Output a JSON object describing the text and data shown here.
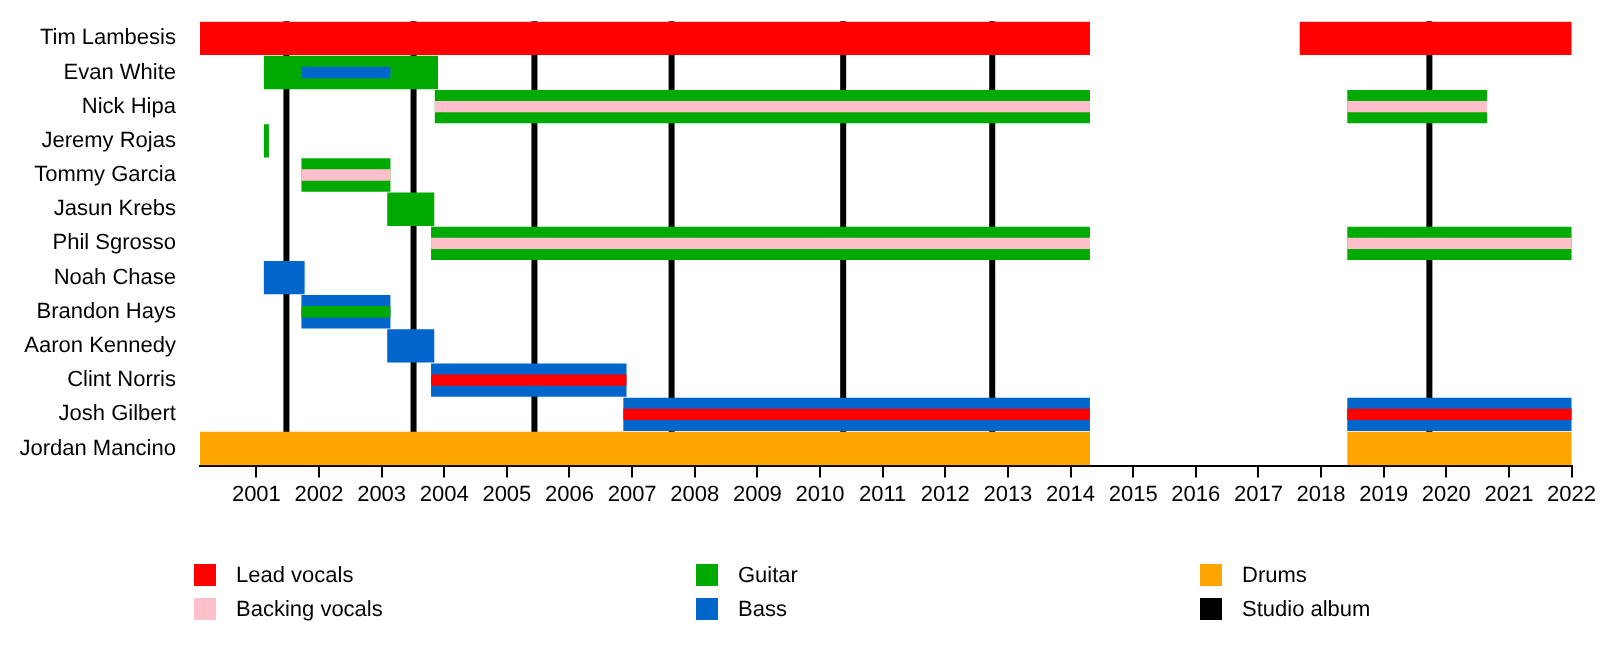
{
  "chart_data": {
    "type": "bar",
    "orientation": "horizontal",
    "legend": "bottom",
    "grid": false,
    "categories": [
      "Tim Lambesis",
      "Evan White",
      "Nick Hipa",
      "Jeremy Rojas",
      "Tommy Garcia",
      "Jasun Krebs",
      "Phil Sgrosso",
      "Noah Chase",
      "Brandon Hays",
      "Aaron Kennedy",
      "Clint Norris",
      "Josh Gilbert",
      "Jordan Mancino"
    ],
    "xlim": [
      2000.1,
      2022
    ],
    "xticks": [
      2001,
      2002,
      2003,
      2004,
      2005,
      2006,
      2007,
      2008,
      2009,
      2010,
      2011,
      2012,
      2013,
      2014,
      2015,
      2016,
      2017,
      2018,
      2019,
      2020,
      2021,
      2022
    ],
    "series": [
      {
        "name": "Lead vocals",
        "color": "#ff0000",
        "base": [
          2000.1,
          null,
          null,
          null,
          null,
          null,
          null,
          null,
          null,
          null,
          2003.8,
          2006.87,
          null
        ],
        "values": [
          14.2,
          null,
          null,
          null,
          null,
          null,
          null,
          null,
          null,
          null,
          3.1,
          7.43,
          null
        ]
      },
      {
        "name": "Backing vocals",
        "color": "#ffc0cb",
        "base": [
          null,
          null,
          2003.86,
          null,
          2001.73,
          null,
          2003.8,
          null,
          null,
          null,
          null,
          null,
          null
        ],
        "values": [
          null,
          null,
          10.44,
          null,
          1.4,
          null,
          10.5,
          null,
          null,
          null,
          null,
          null,
          null
        ]
      },
      {
        "name": "Guitar",
        "color": "#00aa00",
        "base": [
          null,
          2001.13,
          2003.86,
          2001.13,
          2001.73,
          2003.1,
          2003.8,
          null,
          2001.73,
          null,
          null,
          null,
          null
        ],
        "values": [
          null,
          2.76,
          10.44,
          0.06,
          1.4,
          0.73,
          10.5,
          null,
          1.4,
          null,
          null,
          null,
          null
        ]
      },
      {
        "name": "Bass",
        "color": "#0066cc",
        "base": [
          null,
          null,
          null,
          null,
          null,
          null,
          null,
          2001.13,
          2001.73,
          2003.1,
          2003.8,
          2006.87,
          null
        ],
        "values": [
          null,
          null,
          null,
          null,
          null,
          null,
          null,
          0.63,
          1.4,
          0.73,
          3.1,
          7.43,
          null
        ]
      },
      {
        "name": "Drums",
        "color": "#ffa500",
        "base": [
          null,
          null,
          null,
          null,
          null,
          null,
          null,
          null,
          null,
          null,
          null,
          null,
          2000.1
        ],
        "values": [
          null,
          null,
          null,
          null,
          null,
          null,
          null,
          null,
          null,
          null,
          null,
          null,
          14.2
        ]
      },
      {
        "color": "#ff0000",
        "base": [
          2017.67,
          null,
          null,
          null,
          null,
          null,
          null,
          null,
          null,
          null,
          null,
          2018.43,
          null
        ],
        "values": [
          4.33,
          null,
          null,
          null,
          null,
          null,
          null,
          null,
          null,
          null,
          null,
          3.57,
          null
        ]
      },
      {
        "color": "#ffc0cb",
        "base": [
          null,
          null,
          2018.43,
          null,
          null,
          null,
          2018.43,
          null,
          null,
          null,
          null,
          null,
          null
        ],
        "values": [
          null,
          null,
          2.21,
          null,
          null,
          null,
          3.57,
          null,
          null,
          null,
          null,
          null,
          null
        ]
      },
      {
        "color": "#00aa00",
        "base": [
          null,
          null,
          2018.43,
          null,
          null,
          null,
          2018.43,
          null,
          null,
          null,
          null,
          null,
          null
        ],
        "values": [
          null,
          null,
          2.21,
          null,
          null,
          null,
          3.57,
          null,
          null,
          null,
          null,
          null,
          null
        ]
      },
      {
        "color": "#0066cc",
        "base": [
          null,
          2001.73,
          null,
          null,
          null,
          null,
          null,
          null,
          null,
          null,
          null,
          2018.43,
          null
        ],
        "values": [
          null,
          1.4,
          null,
          null,
          null,
          null,
          null,
          null,
          null,
          null,
          null,
          3.57,
          null
        ]
      },
      {
        "color": "#ffa500",
        "base": [
          null,
          null,
          null,
          null,
          null,
          null,
          null,
          null,
          null,
          null,
          null,
          null,
          2018.43
        ],
        "values": [
          null,
          null,
          null,
          null,
          null,
          null,
          null,
          null,
          null,
          null,
          null,
          null,
          3.57
        ]
      }
    ],
    "ref_lines": [
      {
        "axis": "x",
        "value": 2001.48,
        "color": "#000000",
        "label": "Studio album"
      },
      {
        "axis": "x",
        "value": 2003.51,
        "color": "#000000"
      },
      {
        "axis": "x",
        "value": 2005.44,
        "color": "#000000"
      },
      {
        "axis": "x",
        "value": 2007.63,
        "color": "#000000"
      },
      {
        "axis": "x",
        "value": 2010.37,
        "color": "#000000"
      },
      {
        "axis": "x",
        "value": 2012.75,
        "color": "#000000"
      },
      {
        "axis": "x",
        "value": 2019.73,
        "color": "#000000"
      }
    ]
  }
}
